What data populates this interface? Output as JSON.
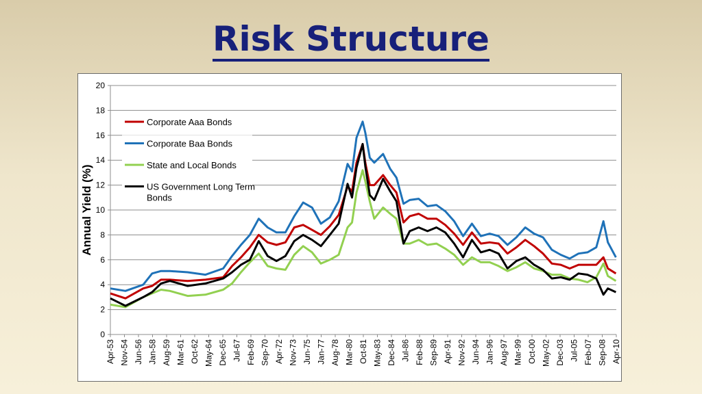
{
  "slide": {
    "title": "Risk Structure"
  },
  "chart_data": {
    "type": "line",
    "title": "",
    "xlabel": "",
    "ylabel": "Annual Yield (%)",
    "ylim": [
      0,
      20
    ],
    "yticks": [
      0,
      2,
      4,
      6,
      8,
      10,
      12,
      14,
      16,
      18,
      20
    ],
    "grid": true,
    "legend": "top-left",
    "x_tick_labels": [
      "Apr-53",
      "Nov-54",
      "Jun-56",
      "Jan-58",
      "Aug-59",
      "Mar-61",
      "Oct-62",
      "May-64",
      "Dec-65",
      "Jul-67",
      "Feb-69",
      "Sep-70",
      "Apr-72",
      "Nov-73",
      "Jun-75",
      "Jan-77",
      "Aug-78",
      "Mar-80",
      "Oct-81",
      "May-83",
      "Dec-84",
      "Jul-86",
      "Feb-88",
      "Sep-89",
      "Apr-91",
      "Nov-92",
      "Jun-94",
      "Jan-96",
      "Aug-97",
      "Mar-99",
      "Oct-00",
      "May-02",
      "Dec-03",
      "Jul-05",
      "Feb-07",
      "Sep-08",
      "Apr-10"
    ],
    "x": [
      1953.3,
      1955,
      1957,
      1958,
      1959,
      1960,
      1962,
      1964,
      1966,
      1967,
      1968,
      1969,
      1970,
      1971,
      1972,
      1973,
      1974,
      1975,
      1976,
      1977,
      1978,
      1979,
      1980,
      1980.5,
      1981,
      1981.7,
      1982,
      1982.5,
      1983,
      1984,
      1984.8,
      1985.5,
      1986.3,
      1987,
      1988,
      1989,
      1990,
      1991,
      1992,
      1993,
      1994,
      1995,
      1996,
      1997,
      1998,
      1999,
      2000,
      2001,
      2002,
      2003,
      2004,
      2005,
      2006,
      2007,
      2008,
      2008.8,
      2009.3,
      2010.2
    ],
    "series": [
      {
        "name": "Corporate Aaa Bonds",
        "color": "#c00000",
        "values": [
          3.3,
          2.9,
          3.7,
          3.9,
          4.4,
          4.4,
          4.3,
          4.4,
          4.6,
          5.5,
          6.2,
          7.0,
          8.0,
          7.4,
          7.2,
          7.4,
          8.6,
          8.8,
          8.4,
          8.0,
          8.7,
          9.6,
          11.9,
          11.5,
          13.8,
          15.3,
          13.8,
          12.0,
          12.0,
          12.8,
          12.0,
          11.4,
          9.0,
          9.5,
          9.7,
          9.3,
          9.3,
          8.8,
          8.1,
          7.2,
          8.2,
          7.3,
          7.4,
          7.3,
          6.5,
          7.0,
          7.6,
          7.1,
          6.5,
          5.7,
          5.6,
          5.3,
          5.6,
          5.6,
          5.6,
          6.2,
          5.3,
          4.9
        ]
      },
      {
        "name": "Corporate Baa Bonds",
        "color": "#1f72b8",
        "values": [
          3.7,
          3.5,
          4.0,
          4.9,
          5.1,
          5.1,
          5.0,
          4.8,
          5.3,
          6.3,
          7.2,
          8.0,
          9.3,
          8.6,
          8.2,
          8.2,
          9.5,
          10.6,
          10.2,
          8.9,
          9.4,
          10.7,
          13.7,
          13.1,
          15.8,
          17.1,
          16.2,
          14.2,
          13.8,
          14.5,
          13.3,
          12.6,
          10.5,
          10.8,
          10.9,
          10.3,
          10.4,
          9.9,
          9.1,
          7.9,
          8.9,
          7.9,
          8.1,
          7.9,
          7.2,
          7.8,
          8.6,
          8.1,
          7.8,
          6.8,
          6.4,
          6.1,
          6.5,
          6.6,
          7.0,
          9.1,
          7.4,
          6.2
        ]
      },
      {
        "name": "State and Local Bonds",
        "color": "#92d050",
        "values": [
          2.4,
          2.2,
          3.0,
          3.3,
          3.6,
          3.5,
          3.1,
          3.2,
          3.6,
          4.1,
          5.0,
          5.8,
          6.5,
          5.5,
          5.3,
          5.2,
          6.4,
          7.1,
          6.6,
          5.7,
          6.0,
          6.4,
          8.6,
          9.0,
          11.4,
          13.2,
          12.3,
          10.7,
          9.3,
          10.2,
          9.7,
          9.3,
          7.3,
          7.3,
          7.6,
          7.2,
          7.3,
          6.9,
          6.4,
          5.6,
          6.2,
          5.8,
          5.8,
          5.5,
          5.1,
          5.4,
          5.8,
          5.3,
          5.1,
          4.8,
          4.8,
          4.5,
          4.4,
          4.2,
          4.6,
          5.7,
          4.7,
          4.3
        ]
      },
      {
        "name": "US Government Long Term Bonds",
        "color": "#000000",
        "values": [
          2.9,
          2.3,
          3.0,
          3.4,
          4.1,
          4.3,
          3.9,
          4.1,
          4.5,
          5.0,
          5.6,
          6.0,
          7.5,
          6.3,
          5.9,
          6.3,
          7.5,
          8.0,
          7.6,
          7.1,
          8.0,
          8.9,
          12.1,
          11.0,
          13.4,
          15.3,
          13.5,
          11.2,
          10.8,
          12.5,
          11.5,
          10.7,
          7.3,
          8.3,
          8.6,
          8.3,
          8.6,
          8.2,
          7.3,
          6.2,
          7.6,
          6.6,
          6.8,
          6.5,
          5.3,
          5.9,
          6.2,
          5.6,
          5.2,
          4.5,
          4.6,
          4.4,
          4.9,
          4.8,
          4.5,
          3.2,
          3.7,
          3.4
        ]
      }
    ]
  }
}
